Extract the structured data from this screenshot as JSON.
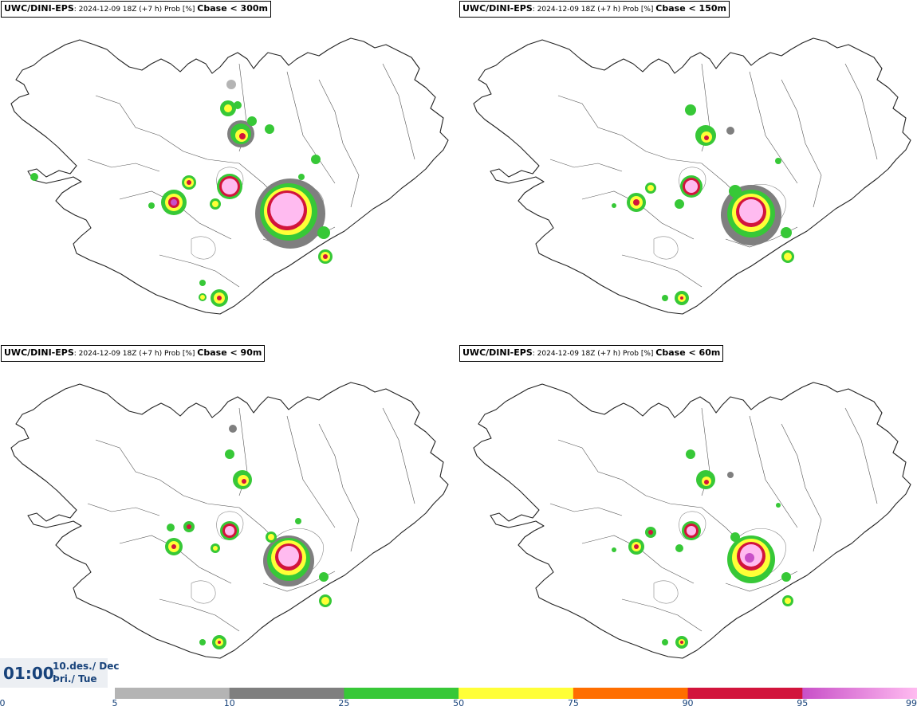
{
  "panels": [
    {
      "source": "UWC/DINI-EPS",
      "info": ": 2024-12-09 18Z (+7 h) Prob [%] ",
      "variable": "Cbase < 300m"
    },
    {
      "source": "UWC/DINI-EPS",
      "info": ": 2024-12-09 18Z (+7 h) Prob [%] ",
      "variable": "Cbase < 150m"
    },
    {
      "source": "UWC/DINI-EPS",
      "info": ": 2024-12-09 18Z (+7 h) Prob [%] ",
      "variable": "Cbase < 90m"
    },
    {
      "source": "UWC/DINI-EPS",
      "info": ": 2024-12-09 18Z (+7 h) Prob [%] ",
      "variable": "Cbase < 60m"
    }
  ],
  "time": {
    "clock": "01:00",
    "date_line1": "10.des./ Dec",
    "date_line2": "Þri./ Tue"
  },
  "legend": {
    "ticks": [
      "0",
      "5",
      "10",
      "25",
      "50",
      "75",
      "90",
      "95",
      "99"
    ],
    "bins": [
      {
        "from": 5,
        "to": 10,
        "color": "#b4b4b4"
      },
      {
        "from": 10,
        "to": 25,
        "color": "#7f7f7f"
      },
      {
        "from": 25,
        "to": 50,
        "color": "#37c837"
      },
      {
        "from": 50,
        "to": 75,
        "color": "#ffff37"
      },
      {
        "from": 75,
        "to": 90,
        "color": "#ff6e00"
      },
      {
        "from": 90,
        "to": 95,
        "color": "#d2143c"
      },
      {
        "from": 95,
        "to": 99,
        "color": "#c850c8"
      }
    ],
    "top_color": "#ffbbf0"
  }
}
